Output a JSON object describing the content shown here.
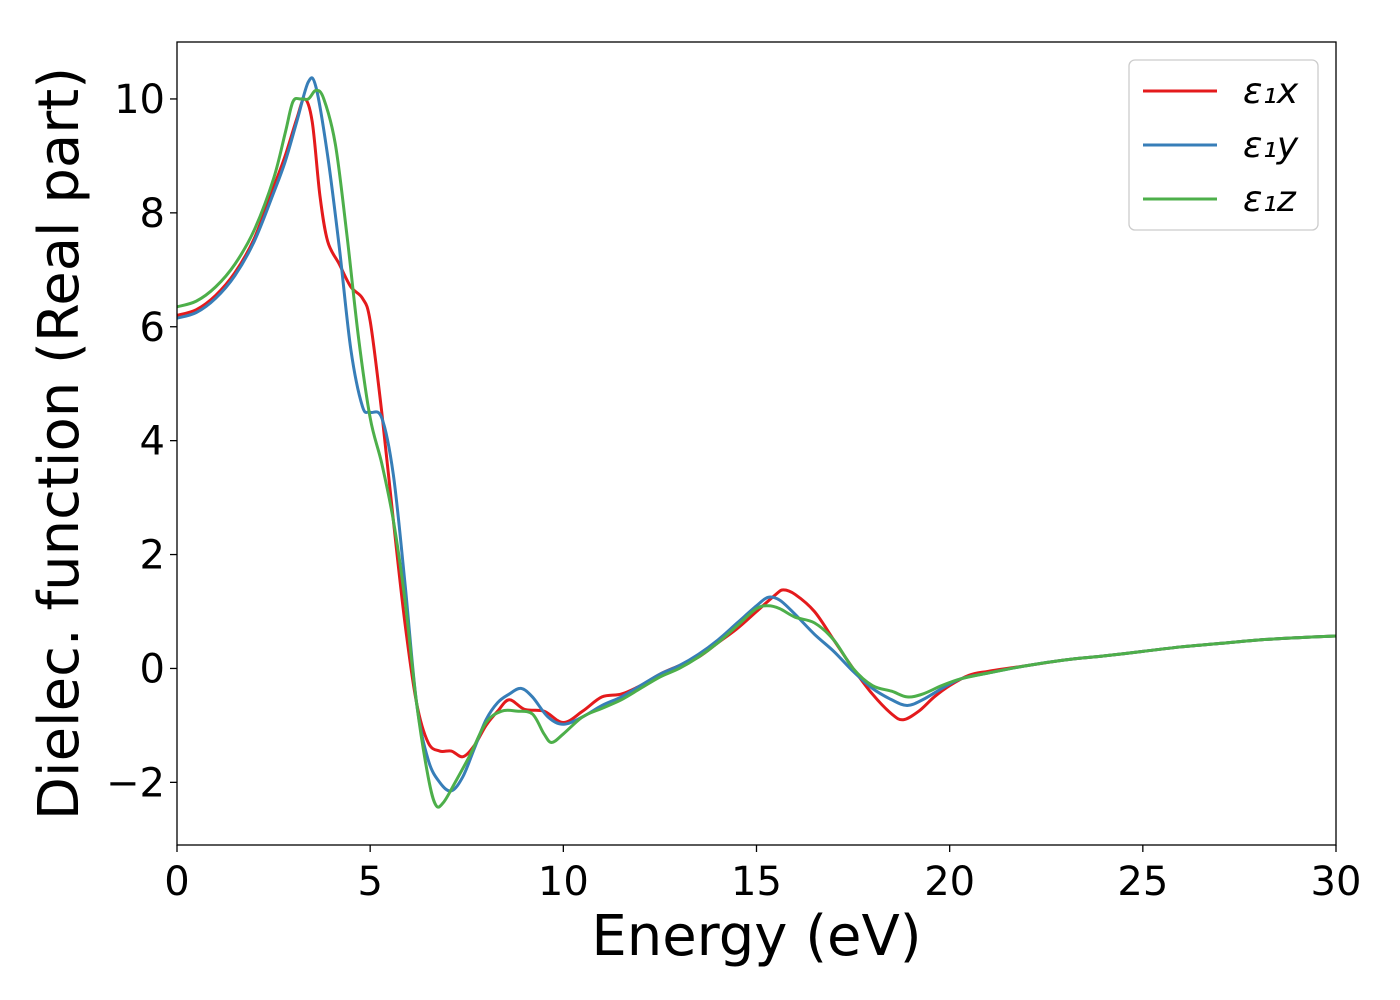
{
  "chart_data": {
    "type": "line",
    "xlabel": "Energy (eV)",
    "ylabel": "Dielec. function (Real part)",
    "xlim": [
      0,
      30
    ],
    "ylim": [
      -3.1,
      11
    ],
    "xticks": [
      0,
      5,
      10,
      15,
      20,
      25,
      30
    ],
    "xtick_labels": [
      "0",
      "5",
      "10",
      "15",
      "20",
      "25",
      "30"
    ],
    "yticks": [
      -2,
      0,
      2,
      4,
      6,
      8,
      10
    ],
    "ytick_labels": [
      "−2",
      "0",
      "2",
      "4",
      "6",
      "8",
      "10"
    ],
    "grid": false,
    "legend_position": "top-right",
    "series": [
      {
        "name": "ε₁x",
        "color": "#e41a1c",
        "x": [
          0,
          0.5,
          1.0,
          1.5,
          2.0,
          2.5,
          2.8,
          3.1,
          3.3,
          3.5,
          3.7,
          3.9,
          4.2,
          4.5,
          4.8,
          5.0,
          5.3,
          5.6,
          5.9,
          6.2,
          6.5,
          6.8,
          7.1,
          7.4,
          7.7,
          8.0,
          8.3,
          8.6,
          9.0,
          9.5,
          10.0,
          10.5,
          11.0,
          11.5,
          12.0,
          12.5,
          13.0,
          13.5,
          14.0,
          14.5,
          15.0,
          15.5,
          15.7,
          16.0,
          16.5,
          17.0,
          17.5,
          18.0,
          18.5,
          18.8,
          19.2,
          19.6,
          20.0,
          20.5,
          21.0,
          22.0,
          23.0,
          24.0,
          25.0,
          26.0,
          27.0,
          28.0,
          29.0,
          30.0
        ],
        "values": [
          6.2,
          6.3,
          6.55,
          6.95,
          7.55,
          8.45,
          9.0,
          9.65,
          10.0,
          9.6,
          8.3,
          7.5,
          7.1,
          6.7,
          6.5,
          6.1,
          4.5,
          2.6,
          0.8,
          -0.6,
          -1.3,
          -1.45,
          -1.45,
          -1.55,
          -1.35,
          -1.0,
          -0.75,
          -0.55,
          -0.72,
          -0.75,
          -0.95,
          -0.75,
          -0.5,
          -0.45,
          -0.3,
          -0.1,
          0.05,
          0.2,
          0.45,
          0.7,
          1.0,
          1.3,
          1.38,
          1.3,
          1.0,
          0.5,
          0.0,
          -0.45,
          -0.8,
          -0.9,
          -0.75,
          -0.5,
          -0.3,
          -0.12,
          -0.05,
          0.05,
          0.15,
          0.22,
          0.3,
          0.38,
          0.44,
          0.5,
          0.54,
          0.57
        ]
      },
      {
        "name": "ε₁y",
        "color": "#377eb8",
        "x": [
          0,
          0.5,
          1.0,
          1.5,
          2.0,
          2.5,
          2.8,
          3.1,
          3.4,
          3.6,
          3.9,
          4.2,
          4.5,
          4.8,
          5.0,
          5.3,
          5.6,
          5.9,
          6.2,
          6.5,
          6.8,
          7.1,
          7.4,
          7.7,
          8.0,
          8.3,
          8.6,
          8.9,
          9.2,
          9.6,
          10.0,
          10.5,
          11.0,
          11.5,
          12.0,
          12.5,
          13.0,
          13.5,
          14.0,
          14.5,
          15.0,
          15.3,
          15.6,
          16.0,
          16.5,
          17.0,
          17.5,
          18.0,
          18.5,
          18.9,
          19.3,
          19.8,
          20.3,
          21.0,
          22.0,
          23.0,
          24.0,
          25.0,
          26.0,
          27.0,
          28.0,
          29.0,
          30.0
        ],
        "values": [
          6.15,
          6.25,
          6.5,
          6.9,
          7.5,
          8.35,
          8.9,
          9.6,
          10.3,
          10.2,
          9.0,
          7.4,
          5.6,
          4.6,
          4.5,
          4.4,
          3.4,
          1.5,
          -0.6,
          -1.6,
          -2.0,
          -2.15,
          -1.9,
          -1.4,
          -0.9,
          -0.6,
          -0.45,
          -0.35,
          -0.5,
          -0.85,
          -0.98,
          -0.85,
          -0.65,
          -0.5,
          -0.3,
          -0.1,
          0.05,
          0.25,
          0.5,
          0.8,
          1.1,
          1.25,
          1.2,
          0.95,
          0.6,
          0.3,
          -0.05,
          -0.35,
          -0.55,
          -0.65,
          -0.55,
          -0.35,
          -0.18,
          -0.08,
          0.05,
          0.15,
          0.22,
          0.3,
          0.38,
          0.44,
          0.5,
          0.54,
          0.57
        ]
      },
      {
        "name": "ε₁z",
        "color": "#4daf4a",
        "x": [
          0,
          0.5,
          1.0,
          1.5,
          2.0,
          2.5,
          2.8,
          3.0,
          3.2,
          3.4,
          3.6,
          3.8,
          4.1,
          4.4,
          4.7,
          5.0,
          5.3,
          5.6,
          5.9,
          6.2,
          6.5,
          6.7,
          6.9,
          7.2,
          7.6,
          8.0,
          8.4,
          8.8,
          9.2,
          9.5,
          9.7,
          10.0,
          10.5,
          11.0,
          11.5,
          12.0,
          12.5,
          13.0,
          13.5,
          14.0,
          14.5,
          15.0,
          15.3,
          15.6,
          16.0,
          16.5,
          17.0,
          17.5,
          18.0,
          18.5,
          18.9,
          19.3,
          19.8,
          20.3,
          21.0,
          22.0,
          23.0,
          24.0,
          25.0,
          26.0,
          27.0,
          28.0,
          29.0,
          30.0
        ],
        "values": [
          6.35,
          6.45,
          6.7,
          7.1,
          7.7,
          8.6,
          9.4,
          9.95,
          10.0,
          10.0,
          10.15,
          10.0,
          9.2,
          7.6,
          5.8,
          4.4,
          3.6,
          2.6,
          1.2,
          -0.6,
          -1.9,
          -2.4,
          -2.35,
          -2.0,
          -1.5,
          -0.95,
          -0.75,
          -0.75,
          -0.8,
          -1.15,
          -1.3,
          -1.15,
          -0.85,
          -0.7,
          -0.55,
          -0.35,
          -0.15,
          0.0,
          0.2,
          0.45,
          0.75,
          1.05,
          1.1,
          1.05,
          0.9,
          0.8,
          0.5,
          0.0,
          -0.3,
          -0.4,
          -0.5,
          -0.45,
          -0.3,
          -0.18,
          -0.08,
          0.05,
          0.15,
          0.22,
          0.3,
          0.38,
          0.44,
          0.5,
          0.54,
          0.57
        ]
      }
    ]
  }
}
